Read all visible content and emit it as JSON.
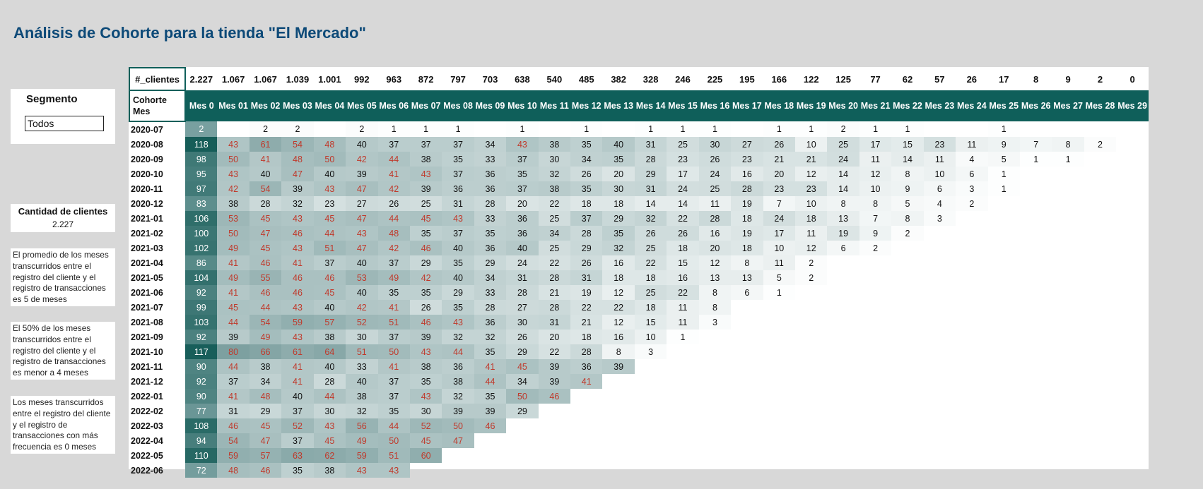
{
  "title": "Análisis de Cohorte para la tienda \"El Mercado\"",
  "segment": {
    "label": "Segmento",
    "selected": "Todos"
  },
  "clients": {
    "label": "Cantidad de clientes",
    "value": "2.227"
  },
  "notes": [
    "El promedio de los meses transcurridos entre el registro del cliente y el registro de transacciones es 5 de meses",
    "El 50% de los meses transcurridos entre el registro del cliente y el registro de transacciones es menor a 4 meses",
    "Los meses transcurridos entre el registro del cliente y el registro de transacciones con más frecuencia es 0 meses"
  ],
  "colors": {
    "header_bg": "#0f5f5a",
    "title": "#0d4a78",
    "highlight_text": "#c0392b"
  },
  "table": {
    "count_label": "#_clientes",
    "cohort_header": "Cohorte Mes",
    "month_headers": [
      "Mes 0",
      "Mes 01",
      "Mes 02",
      "Mes 03",
      "Mes 04",
      "Mes 05",
      "Mes 06",
      "Mes 07",
      "Mes 08",
      "Mes 09",
      "Mes 10",
      "Mes 11",
      "Mes 12",
      "Mes 13",
      "Mes 14",
      "Mes 15",
      "Mes 16",
      "Mes 17",
      "Mes 18",
      "Mes 19",
      "Mes 20",
      "Mes 21",
      "Mes 22",
      "Mes 23",
      "Mes 24",
      "Mes 25",
      "Mes 26",
      "Mes 27",
      "Mes 28",
      "Mes 29"
    ],
    "totals": [
      "2.227",
      "1.067",
      "1.067",
      "1.039",
      "1.001",
      "992",
      "963",
      "872",
      "797",
      "703",
      "638",
      "540",
      "485",
      "382",
      "328",
      "246",
      "225",
      "195",
      "166",
      "122",
      "125",
      "77",
      "62",
      "57",
      "26",
      "17",
      "8",
      "9",
      "2",
      "0"
    ],
    "rows": [
      {
        "cohort": "2020-07",
        "values": [
          2,
          null,
          2,
          2,
          null,
          2,
          1,
          1,
          1,
          null,
          1,
          null,
          1,
          null,
          1,
          1,
          1,
          null,
          1,
          1,
          2,
          1,
          1,
          null,
          null,
          1
        ]
      },
      {
        "cohort": "2020-08",
        "values": [
          118,
          43,
          61,
          54,
          48,
          40,
          37,
          37,
          37,
          34,
          43,
          38,
          35,
          40,
          31,
          25,
          30,
          27,
          26,
          10,
          25,
          17,
          15,
          23,
          11,
          9,
          7,
          8,
          2
        ]
      },
      {
        "cohort": "2020-09",
        "values": [
          98,
          50,
          41,
          48,
          50,
          42,
          44,
          38,
          35,
          33,
          37,
          30,
          34,
          35,
          28,
          23,
          26,
          23,
          21,
          21,
          24,
          11,
          14,
          11,
          4,
          5,
          1,
          1
        ]
      },
      {
        "cohort": "2020-10",
        "values": [
          95,
          43,
          40,
          47,
          40,
          39,
          41,
          43,
          37,
          36,
          35,
          32,
          26,
          20,
          29,
          17,
          24,
          16,
          20,
          12,
          14,
          12,
          8,
          10,
          6,
          1
        ]
      },
      {
        "cohort": "2020-11",
        "values": [
          97,
          42,
          54,
          39,
          43,
          47,
          42,
          39,
          36,
          36,
          37,
          38,
          35,
          30,
          31,
          24,
          25,
          28,
          23,
          23,
          14,
          10,
          9,
          6,
          3,
          1
        ]
      },
      {
        "cohort": "2020-12",
        "values": [
          83,
          38,
          28,
          32,
          23,
          27,
          26,
          25,
          31,
          28,
          20,
          22,
          18,
          18,
          14,
          14,
          11,
          19,
          7,
          10,
          8,
          8,
          5,
          4,
          2
        ]
      },
      {
        "cohort": "2021-01",
        "values": [
          106,
          53,
          45,
          43,
          45,
          47,
          44,
          45,
          43,
          33,
          36,
          25,
          37,
          29,
          32,
          22,
          28,
          18,
          24,
          18,
          13,
          7,
          8,
          3
        ]
      },
      {
        "cohort": "2021-02",
        "values": [
          100,
          50,
          47,
          46,
          44,
          43,
          48,
          35,
          37,
          35,
          36,
          34,
          28,
          35,
          26,
          26,
          16,
          19,
          17,
          11,
          19,
          9,
          2
        ]
      },
      {
        "cohort": "2021-03",
        "values": [
          102,
          49,
          45,
          43,
          51,
          47,
          42,
          46,
          40,
          36,
          40,
          25,
          29,
          32,
          25,
          18,
          20,
          18,
          10,
          12,
          6,
          2
        ]
      },
      {
        "cohort": "2021-04",
        "values": [
          86,
          41,
          46,
          41,
          37,
          40,
          37,
          29,
          35,
          29,
          24,
          22,
          26,
          16,
          22,
          15,
          12,
          8,
          11,
          2
        ]
      },
      {
        "cohort": "2021-05",
        "values": [
          104,
          49,
          55,
          46,
          46,
          53,
          49,
          42,
          40,
          34,
          31,
          28,
          31,
          18,
          18,
          16,
          13,
          13,
          5,
          2
        ]
      },
      {
        "cohort": "2021-06",
        "values": [
          92,
          41,
          46,
          46,
          45,
          40,
          35,
          35,
          29,
          33,
          28,
          21,
          19,
          12,
          25,
          22,
          8,
          6,
          1
        ]
      },
      {
        "cohort": "2021-07",
        "values": [
          99,
          45,
          44,
          43,
          40,
          42,
          41,
          26,
          35,
          28,
          27,
          28,
          22,
          22,
          18,
          11,
          8
        ]
      },
      {
        "cohort": "2021-08",
        "values": [
          103,
          44,
          54,
          59,
          57,
          52,
          51,
          46,
          43,
          36,
          30,
          31,
          21,
          12,
          15,
          11,
          3
        ]
      },
      {
        "cohort": "2021-09",
        "values": [
          92,
          39,
          49,
          43,
          38,
          30,
          37,
          39,
          32,
          32,
          26,
          20,
          18,
          16,
          10,
          1
        ]
      },
      {
        "cohort": "2021-10",
        "values": [
          117,
          80,
          66,
          61,
          64,
          51,
          50,
          43,
          44,
          35,
          29,
          22,
          28,
          8,
          3
        ]
      },
      {
        "cohort": "2021-11",
        "values": [
          90,
          44,
          38,
          41,
          40,
          33,
          41,
          38,
          36,
          41,
          45,
          39,
          36,
          39
        ]
      },
      {
        "cohort": "2021-12",
        "values": [
          92,
          37,
          34,
          41,
          28,
          40,
          37,
          35,
          38,
          44,
          34,
          39,
          41
        ]
      },
      {
        "cohort": "2022-01",
        "values": [
          90,
          41,
          48,
          40,
          44,
          38,
          37,
          43,
          32,
          35,
          50,
          46
        ]
      },
      {
        "cohort": "2022-02",
        "values": [
          77,
          31,
          29,
          37,
          30,
          32,
          35,
          30,
          39,
          39,
          29
        ]
      },
      {
        "cohort": "2022-03",
        "values": [
          108,
          46,
          45,
          52,
          43,
          56,
          44,
          52,
          50,
          46
        ]
      },
      {
        "cohort": "2022-04",
        "values": [
          94,
          54,
          47,
          37,
          45,
          49,
          50,
          45,
          47
        ]
      },
      {
        "cohort": "2022-05",
        "values": [
          110,
          59,
          57,
          63,
          62,
          59,
          51,
          60
        ]
      },
      {
        "cohort": "2022-06",
        "values": [
          72,
          48,
          46,
          35,
          38,
          43,
          43
        ]
      }
    ]
  }
}
